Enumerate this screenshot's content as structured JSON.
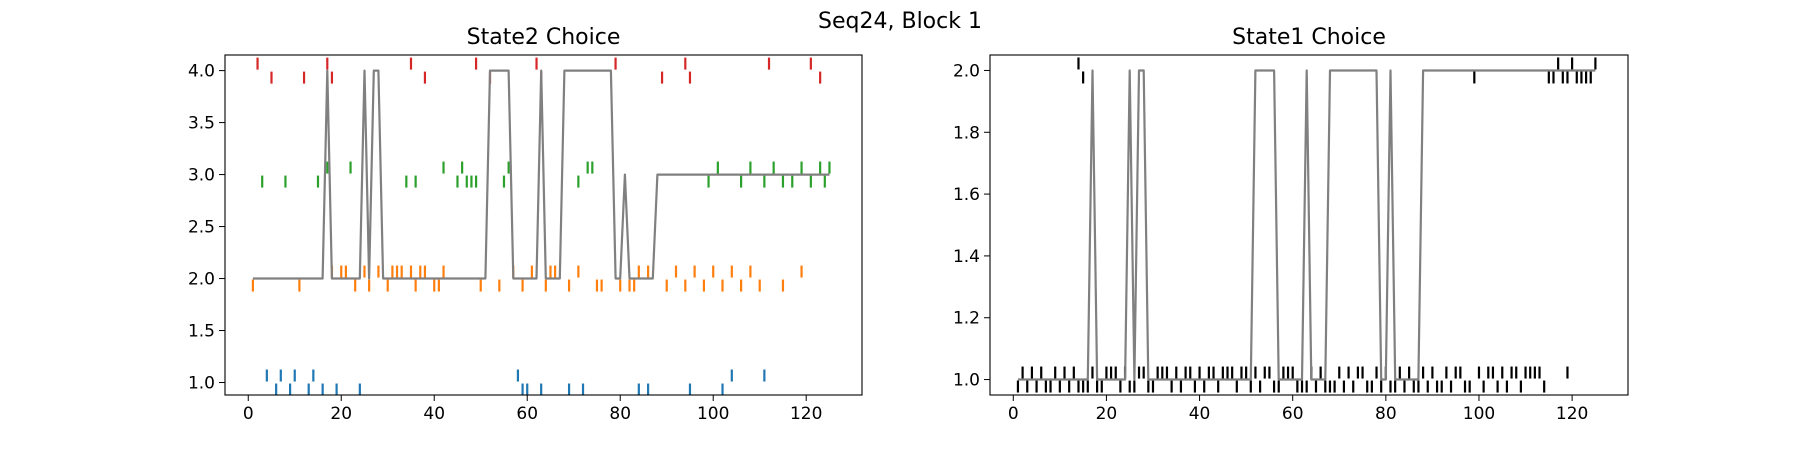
{
  "figure": {
    "suptitle": "Seq24, Block 1"
  },
  "chart_data": [
    {
      "type": "line",
      "title": "State2 Choice",
      "xlabel": "",
      "ylabel": "",
      "xlim": [
        -5,
        132
      ],
      "ylim": [
        0.88,
        4.15
      ],
      "xticks": [
        0,
        20,
        40,
        60,
        80,
        100,
        120
      ],
      "yticks": [
        1.0,
        1.5,
        2.0,
        2.5,
        3.0,
        3.5,
        4.0
      ],
      "ytick_labels": [
        "1.0",
        "1.5",
        "2.0",
        "2.5",
        "3.0",
        "3.5",
        "4.0"
      ],
      "grid": false,
      "line": {
        "color": "#808080",
        "x": [
          1,
          16,
          17,
          18,
          24,
          25,
          26,
          27,
          28,
          29,
          51,
          52,
          56,
          57,
          62,
          63,
          64,
          67,
          68,
          78,
          79,
          80,
          81,
          82,
          87,
          88,
          125
        ],
        "y": [
          2,
          2,
          4,
          2,
          2,
          4,
          2,
          4,
          4,
          2,
          2,
          4,
          4,
          2,
          2,
          4,
          2,
          2,
          4,
          4,
          2,
          2,
          3,
          2,
          2,
          3,
          3
        ]
      },
      "tick_series": [
        {
          "value": 4,
          "color": "#d62728",
          "x": [
            2,
            5,
            12,
            17,
            18,
            35,
            38,
            49,
            52,
            62,
            63,
            79,
            89,
            94,
            95,
            112,
            121,
            123
          ],
          "offset": [
            1,
            -1,
            -1,
            1,
            -1,
            1,
            -1,
            1,
            -1,
            1,
            -1,
            1,
            -1,
            1,
            -1,
            1,
            1,
            -1
          ]
        },
        {
          "value": 3,
          "color": "#2ca02c",
          "x": [
            3,
            8,
            15,
            17,
            22,
            34,
            36,
            42,
            45,
            46,
            47,
            48,
            49,
            55,
            56,
            71,
            73,
            74,
            99,
            101,
            106,
            108,
            111,
            113,
            115,
            117,
            119,
            121,
            123,
            124,
            125
          ],
          "offset": [
            -1,
            -1,
            -1,
            1,
            1,
            -1,
            -1,
            1,
            -1,
            1,
            -1,
            -1,
            -1,
            -1,
            1,
            -1,
            1,
            1,
            -1,
            1,
            -1,
            1,
            -1,
            1,
            -1,
            -1,
            1,
            -1,
            1,
            -1,
            1
          ]
        },
        {
          "value": 2,
          "color": "#ff7f0e",
          "x": [
            1,
            11,
            18,
            20,
            21,
            23,
            25,
            26,
            28,
            30,
            31,
            32,
            33,
            35,
            36,
            37,
            38,
            40,
            41,
            42,
            50,
            54,
            57,
            59,
            61,
            64,
            65,
            66,
            69,
            71,
            75,
            76,
            80,
            82,
            83,
            84,
            86,
            90,
            92,
            94,
            96,
            98,
            100,
            102,
            104,
            106,
            108,
            110,
            115,
            119
          ],
          "offset": [
            -1,
            -1,
            1,
            1,
            1,
            -1,
            1,
            -1,
            1,
            -1,
            1,
            1,
            1,
            1,
            -1,
            1,
            1,
            -1,
            -1,
            1,
            -1,
            -1,
            1,
            -1,
            1,
            -1,
            1,
            1,
            -1,
            1,
            -1,
            -1,
            -1,
            -1,
            -1,
            1,
            1,
            -1,
            1,
            -1,
            1,
            -1,
            1,
            -1,
            1,
            -1,
            1,
            -1,
            -1,
            1
          ]
        },
        {
          "value": 1,
          "color": "#1f77b4",
          "x": [
            4,
            6,
            7,
            9,
            10,
            13,
            14,
            16,
            19,
            24,
            58,
            59,
            60,
            63,
            69,
            72,
            84,
            86,
            95,
            102,
            104,
            111
          ],
          "offset": [
            1,
            -1,
            1,
            -1,
            1,
            -1,
            1,
            -1,
            -1,
            -1,
            1,
            -1,
            -1,
            -1,
            -1,
            -1,
            -1,
            -1,
            -1,
            -1,
            1,
            1
          ]
        }
      ]
    },
    {
      "type": "line",
      "title": "State1 Choice",
      "xlabel": "",
      "ylabel": "",
      "xlim": [
        -5,
        132
      ],
      "ylim": [
        0.95,
        2.05
      ],
      "xticks": [
        0,
        20,
        40,
        60,
        80,
        100,
        120
      ],
      "yticks": [
        1.0,
        1.2,
        1.4,
        1.6,
        1.8,
        2.0
      ],
      "ytick_labels": [
        "1.0",
        "1.2",
        "1.4",
        "1.6",
        "1.8",
        "2.0"
      ],
      "grid": false,
      "line": {
        "color": "#808080",
        "x": [
          1,
          16,
          17,
          18,
          24,
          25,
          26,
          27,
          28,
          29,
          51,
          52,
          56,
          57,
          62,
          63,
          64,
          67,
          68,
          78,
          79,
          80,
          81,
          82,
          87,
          88,
          125
        ],
        "y": [
          1,
          1,
          2,
          1,
          1,
          2,
          1,
          2,
          2,
          1,
          1,
          2,
          2,
          1,
          1,
          2,
          1,
          1,
          2,
          2,
          1,
          1,
          2,
          1,
          1,
          2,
          2
        ]
      },
      "tick_series": [
        {
          "value": 2,
          "color": "#000000",
          "x": [
            14,
            15,
            99,
            115,
            116,
            117,
            118,
            119,
            120,
            121,
            122,
            123,
            124,
            125
          ],
          "offset": [
            1,
            -1,
            -1,
            -1,
            -1,
            1,
            -1,
            -1,
            1,
            -1,
            -1,
            -1,
            -1,
            1
          ]
        },
        {
          "value": 1,
          "color": "#000000",
          "x": [
            1,
            2,
            3,
            4,
            5,
            6,
            7,
            8,
            9,
            10,
            11,
            12,
            13,
            14,
            15,
            16,
            17,
            18,
            19,
            20,
            21,
            22,
            23,
            24,
            25,
            26,
            27,
            28,
            29,
            30,
            31,
            32,
            33,
            34,
            35,
            36,
            37,
            38,
            39,
            40,
            41,
            42,
            43,
            44,
            45,
            46,
            47,
            48,
            49,
            50,
            51,
            52,
            53,
            54,
            55,
            56,
            57,
            58,
            59,
            60,
            61,
            62,
            63,
            64,
            65,
            66,
            67,
            68,
            69,
            70,
            71,
            72,
            73,
            74,
            75,
            76,
            77,
            78,
            79,
            80,
            81,
            82,
            83,
            84,
            85,
            86,
            87,
            88,
            89,
            90,
            91,
            92,
            93,
            94,
            95,
            96,
            97,
            98,
            100,
            101,
            102,
            103,
            104,
            105,
            106,
            107,
            108,
            109,
            110,
            111,
            112,
            113,
            114,
            119
          ],
          "offset": [
            -1,
            1,
            -1,
            1,
            -1,
            1,
            -1,
            -1,
            1,
            -1,
            1,
            -1,
            1,
            -1,
            -1,
            -1,
            1,
            -1,
            -1,
            1,
            1,
            1,
            -1,
            1,
            -1,
            -1,
            1,
            1,
            -1,
            -1,
            1,
            1,
            1,
            -1,
            1,
            -1,
            1,
            1,
            -1,
            1,
            -1,
            1,
            1,
            -1,
            1,
            1,
            1,
            -1,
            1,
            1,
            -1,
            1,
            -1,
            1,
            1,
            -1,
            -1,
            1,
            1,
            1,
            -1,
            -1,
            -1,
            1,
            -1,
            1,
            -1,
            -1,
            -1,
            1,
            -1,
            1,
            -1,
            1,
            1,
            -1,
            -1,
            1,
            -1,
            1,
            -1,
            -1,
            1,
            -1,
            1,
            -1,
            -1,
            1,
            -1,
            1,
            -1,
            -1,
            1,
            -1,
            1,
            1,
            -1,
            -1,
            1,
            -1,
            1,
            1,
            -1,
            1,
            -1,
            1,
            1,
            -1,
            1,
            1,
            1,
            1,
            -1,
            1
          ]
        }
      ]
    }
  ]
}
